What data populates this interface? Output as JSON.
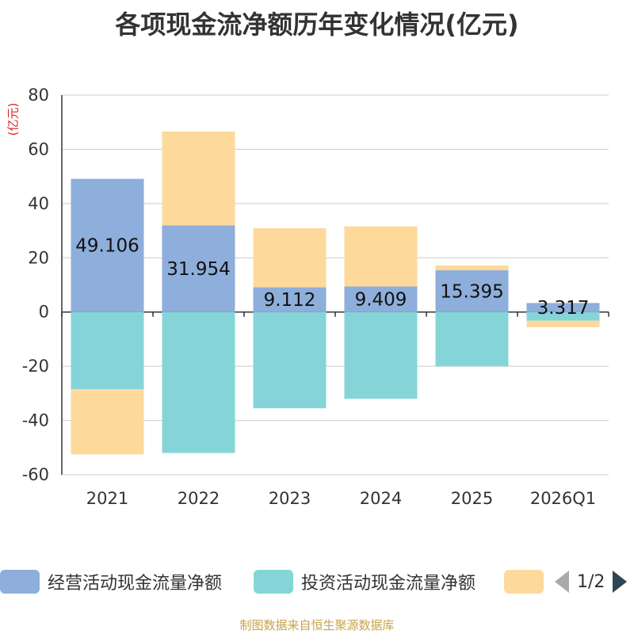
{
  "chart_data": {
    "type": "bar",
    "stacked": true,
    "title": "各项现金流净额历年变化情况(亿元)",
    "ylabel": "(亿元)",
    "ylim": [
      -60,
      80
    ],
    "yticks": [
      80,
      60,
      40,
      20,
      0,
      -20,
      -40,
      -60
    ],
    "categories": [
      "2021",
      "2022",
      "2023",
      "2024",
      "2025",
      "2026Q1"
    ],
    "series": [
      {
        "name": "经营活动现金流量净额",
        "color": "#8eaedb",
        "values": [
          49.106,
          31.954,
          9.112,
          9.409,
          15.395,
          3.317
        ],
        "labels": [
          "49.106",
          "31.954",
          "9.112",
          "9.409",
          "15.395",
          "3.317"
        ]
      },
      {
        "name": "投资活动现金流量净额",
        "color": "#85d5d8",
        "values": [
          -28.5,
          -52.0,
          -35.5,
          -32.0,
          -20.0,
          -3.2
        ]
      },
      {
        "name": "",
        "color": "#fdd99b",
        "values": [
          -24.0,
          34.6,
          21.8,
          22.2,
          1.8,
          -2.4
        ]
      }
    ],
    "legend": {
      "page": "1/2",
      "position": "bottom"
    },
    "grid": true
  },
  "footer": "制图数据来自恒生聚源数据库"
}
